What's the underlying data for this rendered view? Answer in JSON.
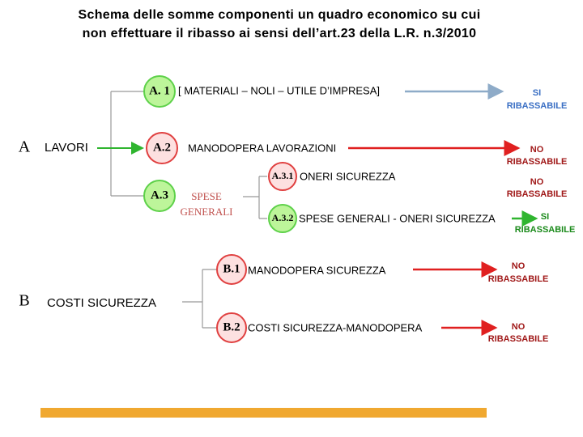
{
  "title": [
    "Schema delle somme componenti un quadro economico su cui",
    "non effettuare il ribasso ai sensi dell’art.23 della L.R. n.3/2010"
  ],
  "groups": [
    {
      "letter": "A",
      "label": "LAVORI"
    },
    {
      "letter": "B",
      "label": "COSTI SICUREZZA"
    }
  ],
  "nodes": [
    {
      "code": "A. 1",
      "label": "[ MATERIALI – NOLI – UTILE D’IMPRESA]",
      "verdict": [
        "SI",
        "RIBASSABILE"
      ]
    },
    {
      "code": "A.2",
      "label": "MANODOPERA LAVORAZIONI",
      "verdict": [
        "NO",
        "RIBASSABILE"
      ]
    },
    {
      "code": "A.3",
      "label": [
        "SPESE",
        "GENERALI"
      ]
    },
    {
      "code": "A.3.1",
      "label": "ONERI  SICUREZZA",
      "verdict": [
        "NO",
        "RIBASSABILE"
      ]
    },
    {
      "code": "A.3.2",
      "label": "SPESE GENERALI - ONERI SICUREZZA",
      "verdict": [
        "SI",
        "RIBASSABILE"
      ]
    },
    {
      "code": "B.1",
      "label": "MANODOPERA  SICUREZZA",
      "verdict": [
        "NO",
        "RIBASSABILE"
      ]
    },
    {
      "code": "B.2",
      "label": "COSTI SICUREZZA-MANODOPERA",
      "verdict": [
        "NO",
        "RIBASSABILE"
      ]
    }
  ]
}
